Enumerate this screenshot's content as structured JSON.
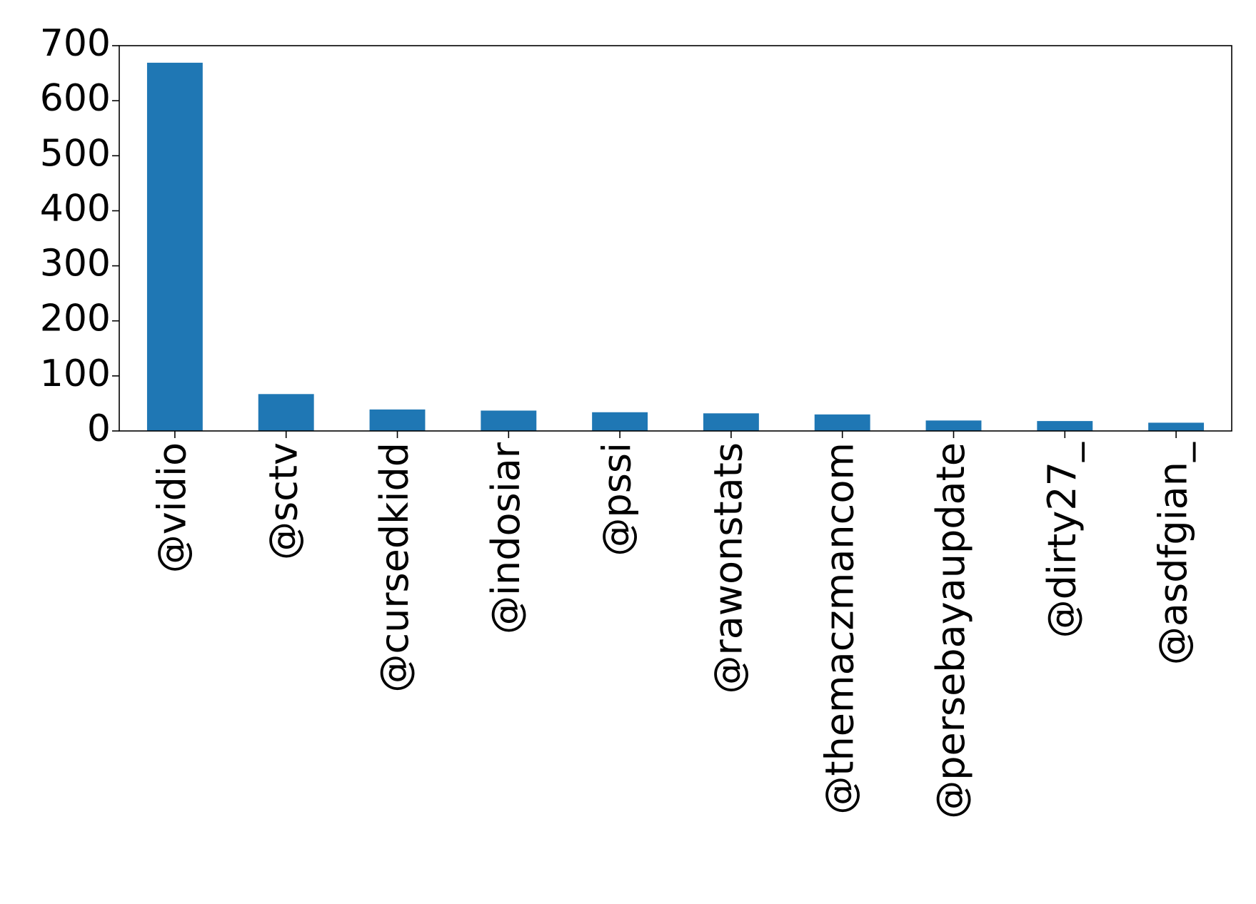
{
  "chart_data": {
    "type": "bar",
    "categories": [
      "@vidio",
      "@sctv",
      "@cursedkidd",
      "@indosiar",
      "@pssi",
      "@rawonstats",
      "@themaczmancom",
      "@persebayaupdate",
      "@dirty27_",
      "@asdfgian_"
    ],
    "values": [
      669,
      67,
      39,
      37,
      34,
      32,
      30,
      19,
      18,
      15
    ],
    "yticks": [
      "0",
      "100",
      "200",
      "300",
      "400",
      "500",
      "600",
      "700"
    ],
    "ylim": [
      0,
      700
    ],
    "bar_color": "#1f77b4",
    "grid": false,
    "legend": "none"
  }
}
